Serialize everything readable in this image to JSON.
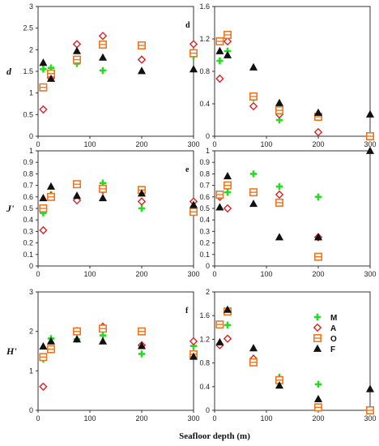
{
  "chart_data": [
    {
      "type": "scatter",
      "ylabel": "d",
      "xlim": [
        0,
        300
      ],
      "ylim": [
        0,
        3
      ],
      "x_ticks": [
        "0",
        "100",
        "200",
        "300"
      ],
      "y_ticks": [
        "0",
        "0.5",
        "1",
        "1.5",
        "2",
        "2.5",
        "3"
      ],
      "series": [
        {
          "name": "M",
          "x": [
            10,
            25,
            75,
            125,
            200,
            300
          ],
          "y": [
            1.55,
            1.58,
            1.68,
            1.52,
            1.78,
            1.85
          ]
        },
        {
          "name": "A",
          "x": [
            10,
            25,
            75,
            125,
            200,
            300
          ],
          "y": [
            0.62,
            1.35,
            2.13,
            2.32,
            1.77,
            2.13
          ]
        },
        {
          "name": "O",
          "x": [
            10,
            25,
            75,
            125,
            200,
            300
          ],
          "y": [
            1.13,
            1.45,
            1.77,
            2.12,
            2.1,
            1.92
          ]
        },
        {
          "name": "F",
          "x": [
            10,
            25,
            75,
            125,
            200,
            300
          ],
          "y": [
            1.7,
            1.33,
            1.97,
            1.82,
            1.51,
            1.55
          ]
        }
      ]
    },
    {
      "type": "scatter",
      "panel_label": "d",
      "xlim": [
        0,
        300
      ],
      "ylim": [
        0,
        1.6
      ],
      "x_ticks": [
        "0",
        "100",
        "200",
        "300"
      ],
      "y_ticks": [
        "0",
        "0.4",
        "0.8",
        "1.2",
        "1.6"
      ],
      "series": [
        {
          "name": "M",
          "x": [
            10,
            25,
            75,
            125,
            200,
            300
          ],
          "y": [
            0.93,
            1.05,
            0.47,
            0.2,
            0.23,
            0.0
          ]
        },
        {
          "name": "A",
          "x": [
            10,
            25,
            75,
            125,
            200,
            300
          ],
          "y": [
            0.71,
            1.17,
            0.37,
            0.27,
            0.05,
            0.0
          ]
        },
        {
          "name": "O",
          "x": [
            10,
            25,
            75,
            125,
            200,
            300
          ],
          "y": [
            1.17,
            1.25,
            0.49,
            0.32,
            0.24,
            0.0
          ]
        },
        {
          "name": "F",
          "x": [
            10,
            25,
            75,
            125,
            200,
            300
          ],
          "y": [
            1.05,
            1.0,
            0.85,
            0.41,
            0.29,
            0.27
          ]
        }
      ]
    },
    {
      "type": "scatter",
      "ylabel": "J'",
      "xlim": [
        0,
        300
      ],
      "ylim": [
        0,
        1
      ],
      "x_ticks": [
        "0",
        "100",
        "200",
        "300"
      ],
      "y_ticks": [
        "0",
        "0.1",
        "0.2",
        "0.3",
        "0.4",
        "0.5",
        "0.6",
        "0.7",
        "0.8",
        "0.9",
        "1"
      ],
      "series": [
        {
          "name": "M",
          "x": [
            10,
            25,
            75,
            125,
            200,
            300
          ],
          "y": [
            0.46,
            0.62,
            0.71,
            0.72,
            0.5,
            0.51
          ]
        },
        {
          "name": "A",
          "x": [
            10,
            25,
            75,
            125,
            200,
            300
          ],
          "y": [
            0.31,
            0.61,
            0.57,
            0.66,
            0.56,
            0.56
          ]
        },
        {
          "name": "O",
          "x": [
            10,
            25,
            75,
            125,
            200,
            300
          ],
          "y": [
            0.5,
            0.6,
            0.71,
            0.67,
            0.66,
            0.47
          ]
        },
        {
          "name": "F",
          "x": [
            10,
            25,
            75,
            125,
            200,
            300
          ],
          "y": [
            0.59,
            0.69,
            0.61,
            0.59,
            0.63,
            0.53
          ]
        }
      ]
    },
    {
      "type": "scatter",
      "panel_label": "e",
      "xlim": [
        0,
        300
      ],
      "ylim": [
        0,
        1
      ],
      "x_ticks": [
        "0",
        "100",
        "200",
        "300"
      ],
      "y_ticks": [
        "0",
        "0.1",
        "0.2",
        "0.3",
        "0.4",
        "0.5",
        "0.6",
        "0.7",
        "0.8",
        "0.9",
        "1"
      ],
      "series": [
        {
          "name": "M",
          "x": [
            10,
            25,
            75,
            125,
            200
          ],
          "y": [
            0.62,
            0.64,
            0.8,
            0.69,
            0.6
          ]
        },
        {
          "name": "A",
          "x": [
            10,
            25,
            75,
            125,
            200
          ],
          "y": [
            0.6,
            0.5,
            0.64,
            0.62,
            0.25
          ]
        },
        {
          "name": "O",
          "x": [
            10,
            25,
            75,
            125,
            200
          ],
          "y": [
            0.62,
            0.7,
            0.64,
            0.55,
            0.08
          ]
        },
        {
          "name": "F",
          "x": [
            10,
            25,
            75,
            125,
            200,
            300
          ],
          "y": [
            0.51,
            0.78,
            0.54,
            0.25,
            0.25,
            1.0
          ]
        }
      ]
    },
    {
      "type": "scatter",
      "ylabel": "H'",
      "xlim": [
        0,
        300
      ],
      "ylim": [
        0,
        3
      ],
      "x_ticks": [
        "0",
        "100",
        "200",
        "300"
      ],
      "y_ticks": [
        "0",
        "1",
        "2",
        "3"
      ],
      "series": [
        {
          "name": "M",
          "x": [
            10,
            25,
            75,
            125,
            200,
            300
          ],
          "y": [
            1.3,
            1.82,
            1.8,
            1.9,
            1.43,
            1.63
          ]
        },
        {
          "name": "A",
          "x": [
            10,
            25,
            75,
            125,
            200,
            300
          ],
          "y": [
            0.6,
            1.55,
            2.01,
            2.12,
            1.65,
            1.75
          ]
        },
        {
          "name": "O",
          "x": [
            10,
            25,
            75,
            125,
            200,
            300
          ],
          "y": [
            1.35,
            1.55,
            2.0,
            2.07,
            2.0,
            1.42
          ]
        },
        {
          "name": "F",
          "x": [
            10,
            25,
            75,
            125,
            200,
            300
          ],
          "y": [
            1.62,
            1.75,
            1.8,
            1.75,
            1.63,
            1.36
          ]
        }
      ]
    },
    {
      "type": "scatter",
      "panel_label": "f",
      "xlim": [
        0,
        300
      ],
      "ylim": [
        0,
        2
      ],
      "x_ticks": [
        "0",
        "100",
        "200",
        "300"
      ],
      "y_ticks": [
        "0",
        "0.4",
        "0.8",
        "1.2",
        "1.6",
        "2"
      ],
      "series": [
        {
          "name": "M",
          "x": [
            10,
            25,
            75,
            125,
            200,
            300
          ],
          "y": [
            1.12,
            1.44,
            0.88,
            0.56,
            0.44,
            0.0
          ]
        },
        {
          "name": "A",
          "x": [
            10,
            25,
            75,
            125,
            200,
            300
          ],
          "y": [
            1.1,
            1.21,
            0.87,
            0.52,
            0.05,
            0.0
          ]
        },
        {
          "name": "O",
          "x": [
            10,
            25,
            75,
            125,
            200,
            300
          ],
          "y": [
            1.45,
            1.67,
            0.81,
            0.51,
            0.05,
            0.0
          ]
        },
        {
          "name": "F",
          "x": [
            10,
            25,
            75,
            125,
            200,
            300
          ],
          "y": [
            1.15,
            1.7,
            1.05,
            0.42,
            0.19,
            0.36
          ]
        }
      ]
    }
  ],
  "xlabel": "Seafloor depth (m)",
  "legend": {
    "placement": "inside-right of panel f",
    "items": [
      {
        "label": "M",
        "marker": "plus",
        "color": "#22dd22"
      },
      {
        "label": "A",
        "marker": "diamond",
        "color": "#dd2222"
      },
      {
        "label": "O",
        "marker": "square",
        "color": "#ee7722"
      },
      {
        "label": "F",
        "marker": "triangle",
        "color": "#111111"
      }
    ]
  },
  "series_colors": {
    "M": "#22dd22",
    "A": "#dd2222",
    "O": "#ee7722",
    "F": "#111111"
  },
  "series_markers": {
    "M": "plus",
    "A": "diamond",
    "O": "square",
    "F": "triangle"
  }
}
